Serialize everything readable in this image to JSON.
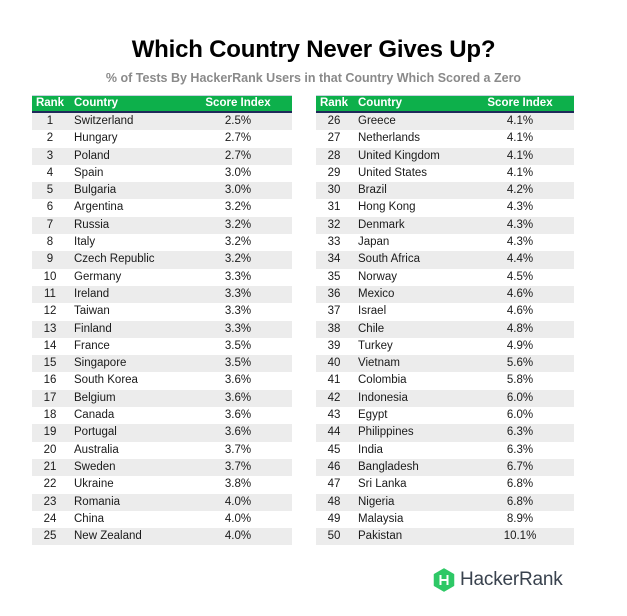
{
  "header": {
    "title": "Which Country Never Gives Up?",
    "subtitle": "% of Tests By HackerRank Users in that Country Which Scored a Zero"
  },
  "columns": {
    "rank": "Rank",
    "country": "Country",
    "score": "Score Index"
  },
  "colors": {
    "header_bg": "#0db04b",
    "header_border": "#1f2a5a",
    "row_alt": "#ececec",
    "brand": "#2ec866"
  },
  "brand": {
    "name": "HackerRank",
    "icon": "hackerrank-hexagon-icon"
  },
  "left_table": [
    {
      "rank": "1",
      "country": "Switzerland",
      "score": "2.5%"
    },
    {
      "rank": "2",
      "country": "Hungary",
      "score": "2.7%"
    },
    {
      "rank": "3",
      "country": "Poland",
      "score": "2.7%"
    },
    {
      "rank": "4",
      "country": "Spain",
      "score": "3.0%"
    },
    {
      "rank": "5",
      "country": "Bulgaria",
      "score": "3.0%"
    },
    {
      "rank": "6",
      "country": "Argentina",
      "score": "3.2%"
    },
    {
      "rank": "7",
      "country": "Russia",
      "score": "3.2%"
    },
    {
      "rank": "8",
      "country": "Italy",
      "score": "3.2%"
    },
    {
      "rank": "9",
      "country": "Czech Republic",
      "score": "3.2%"
    },
    {
      "rank": "10",
      "country": "Germany",
      "score": "3.3%"
    },
    {
      "rank": "11",
      "country": "Ireland",
      "score": "3.3%"
    },
    {
      "rank": "12",
      "country": "Taiwan",
      "score": "3.3%"
    },
    {
      "rank": "13",
      "country": "Finland",
      "score": "3.3%"
    },
    {
      "rank": "14",
      "country": "France",
      "score": "3.5%"
    },
    {
      "rank": "15",
      "country": "Singapore",
      "score": "3.5%"
    },
    {
      "rank": "16",
      "country": "South Korea",
      "score": "3.6%"
    },
    {
      "rank": "17",
      "country": "Belgium",
      "score": "3.6%"
    },
    {
      "rank": "18",
      "country": "Canada",
      "score": "3.6%"
    },
    {
      "rank": "19",
      "country": "Portugal",
      "score": "3.6%"
    },
    {
      "rank": "20",
      "country": "Australia",
      "score": "3.7%"
    },
    {
      "rank": "21",
      "country": "Sweden",
      "score": "3.7%"
    },
    {
      "rank": "22",
      "country": "Ukraine",
      "score": "3.8%"
    },
    {
      "rank": "23",
      "country": "Romania",
      "score": "4.0%"
    },
    {
      "rank": "24",
      "country": "China",
      "score": "4.0%"
    },
    {
      "rank": "25",
      "country": "New Zealand",
      "score": "4.0%"
    }
  ],
  "right_table": [
    {
      "rank": "26",
      "country": "Greece",
      "score": "4.1%"
    },
    {
      "rank": "27",
      "country": "Netherlands",
      "score": "4.1%"
    },
    {
      "rank": "28",
      "country": "United Kingdom",
      "score": "4.1%"
    },
    {
      "rank": "29",
      "country": "United States",
      "score": "4.1%"
    },
    {
      "rank": "30",
      "country": "Brazil",
      "score": "4.2%"
    },
    {
      "rank": "31",
      "country": "Hong Kong",
      "score": "4.3%"
    },
    {
      "rank": "32",
      "country": "Denmark",
      "score": "4.3%"
    },
    {
      "rank": "33",
      "country": "Japan",
      "score": "4.3%"
    },
    {
      "rank": "34",
      "country": "South Africa",
      "score": "4.4%"
    },
    {
      "rank": "35",
      "country": "Norway",
      "score": "4.5%"
    },
    {
      "rank": "36",
      "country": "Mexico",
      "score": "4.6%"
    },
    {
      "rank": "37",
      "country": "Israel",
      "score": "4.6%"
    },
    {
      "rank": "38",
      "country": "Chile",
      "score": "4.8%"
    },
    {
      "rank": "39",
      "country": "Turkey",
      "score": "4.9%"
    },
    {
      "rank": "40",
      "country": "Vietnam",
      "score": "5.6%"
    },
    {
      "rank": "41",
      "country": "Colombia",
      "score": "5.8%"
    },
    {
      "rank": "42",
      "country": "Indonesia",
      "score": "6.0%"
    },
    {
      "rank": "43",
      "country": "Egypt",
      "score": "6.0%"
    },
    {
      "rank": "44",
      "country": "Philippines",
      "score": "6.3%"
    },
    {
      "rank": "45",
      "country": "India",
      "score": "6.3%"
    },
    {
      "rank": "46",
      "country": "Bangladesh",
      "score": "6.7%"
    },
    {
      "rank": "47",
      "country": "Sri Lanka",
      "score": "6.8%"
    },
    {
      "rank": "48",
      "country": "Nigeria",
      "score": "6.8%"
    },
    {
      "rank": "49",
      "country": "Malaysia",
      "score": "8.9%"
    },
    {
      "rank": "50",
      "country": "Pakistan",
      "score": "10.1%"
    }
  ],
  "chart_data": {
    "type": "table",
    "title": "Which Country Never Gives Up?",
    "subtitle": "% of Tests By HackerRank Users in that Country Which Scored a Zero",
    "columns": [
      "Rank",
      "Country",
      "Score Index"
    ],
    "categories": [
      "Switzerland",
      "Hungary",
      "Poland",
      "Spain",
      "Bulgaria",
      "Argentina",
      "Russia",
      "Italy",
      "Czech Republic",
      "Germany",
      "Ireland",
      "Taiwan",
      "Finland",
      "France",
      "Singapore",
      "South Korea",
      "Belgium",
      "Canada",
      "Portugal",
      "Australia",
      "Sweden",
      "Ukraine",
      "Romania",
      "China",
      "New Zealand",
      "Greece",
      "Netherlands",
      "United Kingdom",
      "United States",
      "Brazil",
      "Hong Kong",
      "Denmark",
      "Japan",
      "South Africa",
      "Norway",
      "Mexico",
      "Israel",
      "Chile",
      "Turkey",
      "Vietnam",
      "Colombia",
      "Indonesia",
      "Egypt",
      "Philippines",
      "India",
      "Bangladesh",
      "Sri Lanka",
      "Nigeria",
      "Malaysia",
      "Pakistan"
    ],
    "values": [
      2.5,
      2.7,
      2.7,
      3.0,
      3.0,
      3.2,
      3.2,
      3.2,
      3.2,
      3.3,
      3.3,
      3.3,
      3.3,
      3.5,
      3.5,
      3.6,
      3.6,
      3.6,
      3.6,
      3.7,
      3.7,
      3.8,
      4.0,
      4.0,
      4.0,
      4.1,
      4.1,
      4.1,
      4.1,
      4.2,
      4.3,
      4.3,
      4.3,
      4.4,
      4.5,
      4.6,
      4.6,
      4.8,
      4.9,
      5.6,
      5.8,
      6.0,
      6.0,
      6.3,
      6.3,
      6.7,
      6.8,
      6.8,
      8.9,
      10.1
    ],
    "unit": "%"
  }
}
